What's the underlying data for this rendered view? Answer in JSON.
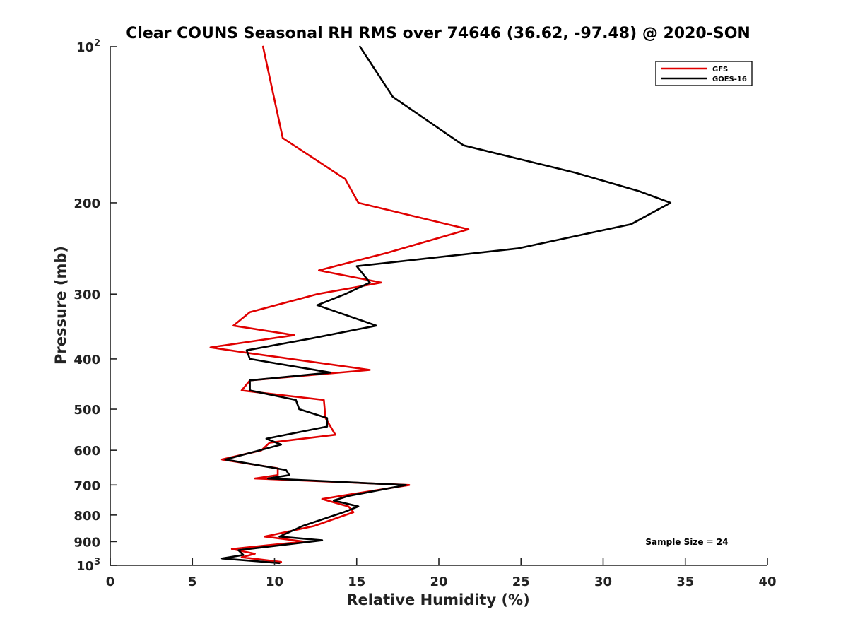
{
  "chart_data": {
    "type": "line",
    "title": "Clear COUNS Seasonal RH RMS over 74646 (36.62, -97.48) @ 2020-SON",
    "xlabel": "Relative Humidity (%)",
    "ylabel": "Pressure (mb)",
    "xlim": [
      0,
      40
    ],
    "ylim": [
      100,
      1000
    ],
    "y_scale": "log",
    "y_inverted": true,
    "x_ticks": [
      0,
      5,
      10,
      15,
      20,
      25,
      30,
      35,
      40
    ],
    "x_tick_labels": [
      "0",
      "5",
      "10",
      "15",
      "20",
      "25",
      "30",
      "35",
      "40"
    ],
    "y_ticks": [
      200,
      300,
      400,
      500,
      600,
      700,
      800,
      900
    ],
    "y_tick_labels": [
      "200",
      "300",
      "400",
      "500",
      "600",
      "700",
      "800",
      "900"
    ],
    "y_edge_labels": {
      "top_base": "10",
      "top_exp": "2",
      "bottom_base": "10",
      "bottom_exp": "3"
    },
    "legend_position": "top-right",
    "annotation": "Sample Size = 24",
    "series": [
      {
        "name": "GFS",
        "color": "#e00000",
        "points": [
          [
            9.3,
            100
          ],
          [
            10.5,
            150
          ],
          [
            14.3,
            180
          ],
          [
            15.1,
            200
          ],
          [
            21.8,
            225
          ],
          [
            16.8,
            250
          ],
          [
            12.7,
            270
          ],
          [
            16.5,
            285
          ],
          [
            12.6,
            300
          ],
          [
            8.5,
            325
          ],
          [
            7.5,
            345
          ],
          [
            11.2,
            360
          ],
          [
            6.1,
            380
          ],
          [
            8.5,
            390
          ],
          [
            15.8,
            420
          ],
          [
            8.5,
            440
          ],
          [
            8.0,
            460
          ],
          [
            13.0,
            480
          ],
          [
            13.1,
            520
          ],
          [
            13.7,
            560
          ],
          [
            9.7,
            580
          ],
          [
            9.2,
            600
          ],
          [
            6.8,
            625
          ],
          [
            10.2,
            650
          ],
          [
            10.2,
            670
          ],
          [
            8.8,
            680
          ],
          [
            18.2,
            700
          ],
          [
            14.6,
            730
          ],
          [
            12.9,
            745
          ],
          [
            14.5,
            770
          ],
          [
            14.8,
            790
          ],
          [
            12.4,
            840
          ],
          [
            9.4,
            880
          ],
          [
            11.8,
            900
          ],
          [
            7.4,
            930
          ],
          [
            8.8,
            950
          ],
          [
            8.0,
            965
          ],
          [
            10.4,
            985
          ]
        ]
      },
      {
        "name": "GOES-16",
        "color": "#000000",
        "points": [
          [
            15.2,
            100
          ],
          [
            17.2,
            125
          ],
          [
            21.5,
            155
          ],
          [
            28.3,
            175
          ],
          [
            32.2,
            190
          ],
          [
            34.1,
            200
          ],
          [
            31.7,
            220
          ],
          [
            24.8,
            245
          ],
          [
            15.0,
            265
          ],
          [
            15.8,
            285
          ],
          [
            14.3,
            300
          ],
          [
            12.6,
            315
          ],
          [
            16.2,
            345
          ],
          [
            12.3,
            365
          ],
          [
            8.3,
            385
          ],
          [
            8.5,
            400
          ],
          [
            13.4,
            425
          ],
          [
            8.5,
            440
          ],
          [
            8.5,
            460
          ],
          [
            11.3,
            480
          ],
          [
            11.5,
            500
          ],
          [
            13.2,
            520
          ],
          [
            13.2,
            540
          ],
          [
            9.5,
            570
          ],
          [
            10.4,
            585
          ],
          [
            7.0,
            625
          ],
          [
            10.7,
            655
          ],
          [
            10.9,
            670
          ],
          [
            9.6,
            680
          ],
          [
            18.0,
            700
          ],
          [
            14.5,
            735
          ],
          [
            13.6,
            750
          ],
          [
            15.1,
            770
          ],
          [
            14.2,
            790
          ],
          [
            11.7,
            840
          ],
          [
            10.3,
            880
          ],
          [
            12.9,
            895
          ],
          [
            7.8,
            935
          ],
          [
            8.1,
            955
          ],
          [
            6.8,
            970
          ],
          [
            10.3,
            990
          ]
        ]
      }
    ]
  }
}
